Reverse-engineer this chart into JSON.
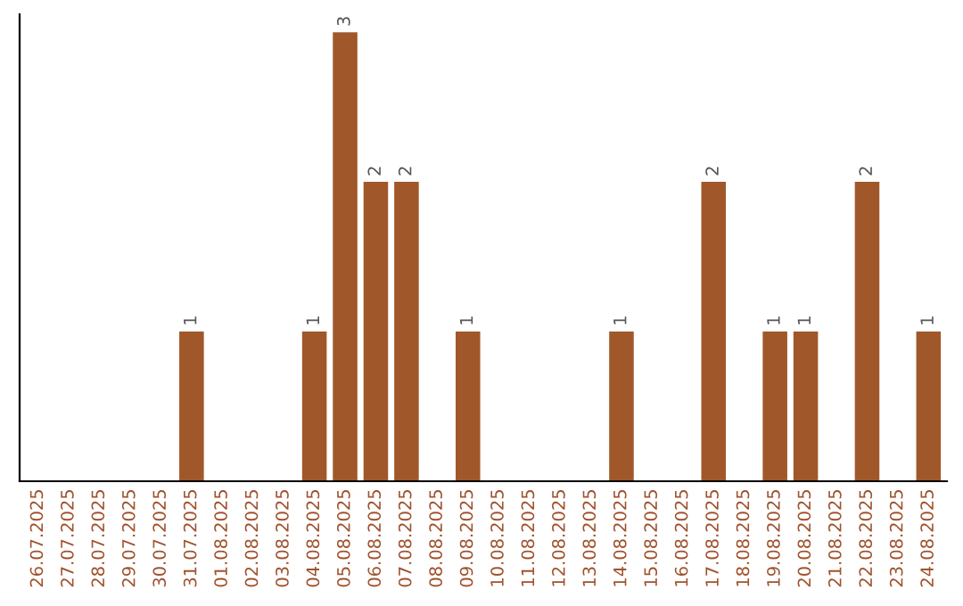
{
  "chart_data": {
    "type": "bar",
    "categories": [
      "26.07.2025",
      "27.07.2025",
      "28.07.2025",
      "29.07.2025",
      "30.07.2025",
      "31.07.2025",
      "01.08.2025",
      "02.08.2025",
      "03.08.2025",
      "04.08.2025",
      "05.08.2025",
      "06.08.2025",
      "07.08.2025",
      "08.08.2025",
      "09.08.2025",
      "10.08.2025",
      "11.08.2025",
      "12.08.2025",
      "13.08.2025",
      "14.08.2025",
      "15.08.2025",
      "16.08.2025",
      "17.08.2025",
      "18.08.2025",
      "19.08.2025",
      "20.08.2025",
      "21.08.2025",
      "22.08.2025",
      "23.08.2025",
      "24.08.2025"
    ],
    "values": [
      0,
      0,
      0,
      0,
      0,
      1,
      0,
      0,
      0,
      1,
      3,
      2,
      2,
      0,
      1,
      0,
      0,
      0,
      0,
      1,
      0,
      0,
      2,
      0,
      1,
      1,
      0,
      2,
      0,
      1
    ],
    "color": "#a0582a",
    "value_labels": [
      null,
      null,
      null,
      null,
      null,
      "1",
      null,
      null,
      null,
      "1",
      "3",
      "2",
      "2",
      null,
      "1",
      null,
      null,
      null,
      null,
      "1",
      null,
      null,
      "2",
      null,
      "1",
      "1",
      null,
      "2",
      null,
      "1"
    ],
    "tick_labels": "x",
    "grid": false,
    "legend": false
  }
}
